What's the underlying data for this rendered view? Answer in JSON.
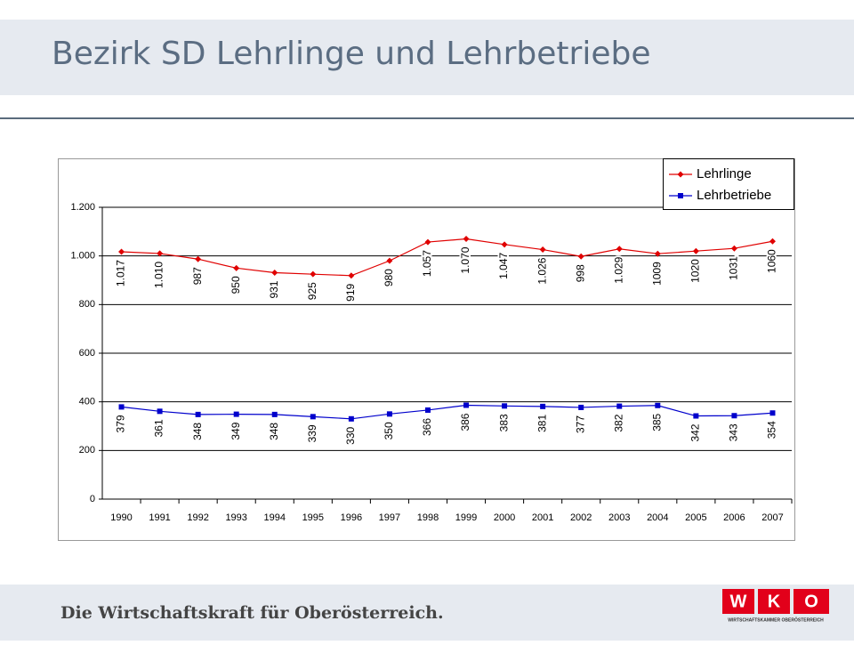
{
  "header": {
    "title": "Bezirk SD Lehrlinge und Lehrbetriebe"
  },
  "footer": {
    "tagline": "Die Wirtschaftskraft für Oberösterreich.",
    "logo": [
      "W",
      "K",
      "O"
    ],
    "logo_caption": "WIRTSCHAFTSKAMMER OBERÖSTERREICH"
  },
  "chart_data": {
    "type": "line",
    "categories": [
      "1990",
      "1991",
      "1992",
      "1993",
      "1994",
      "1995",
      "1996",
      "1997",
      "1998",
      "1999",
      "2000",
      "2001",
      "2002",
      "2003",
      "2004",
      "2005",
      "2006",
      "2007"
    ],
    "series": [
      {
        "name": "Lehrlinge",
        "color": "#e00000",
        "marker": "diamond",
        "values": [
          1017,
          1010,
          987,
          950,
          931,
          925,
          919,
          980,
          1057,
          1070,
          1047,
          1026,
          998,
          1029,
          1009,
          1020,
          1031,
          1060
        ],
        "value_labels": [
          "1.017",
          "1.010",
          "987",
          "950",
          "931",
          "925",
          "919",
          "980",
          "1.057",
          "1.070",
          "1.047",
          "1.026",
          "998",
          "1.029",
          "1009",
          "1020",
          "1031",
          "1060"
        ]
      },
      {
        "name": "Lehrbetriebe",
        "color": "#0000cc",
        "marker": "square",
        "values": [
          379,
          361,
          348,
          349,
          348,
          339,
          330,
          350,
          366,
          386,
          383,
          381,
          377,
          382,
          385,
          342,
          343,
          354
        ]
      }
    ],
    "ylim": [
      0,
      1200
    ],
    "yticks": [
      0,
      200,
      400,
      600,
      800,
      {
        "value": 1000,
        "label": "1.000"
      },
      {
        "value": 1200,
        "label": "1.200"
      }
    ],
    "grid": true,
    "legend": "top-right"
  }
}
